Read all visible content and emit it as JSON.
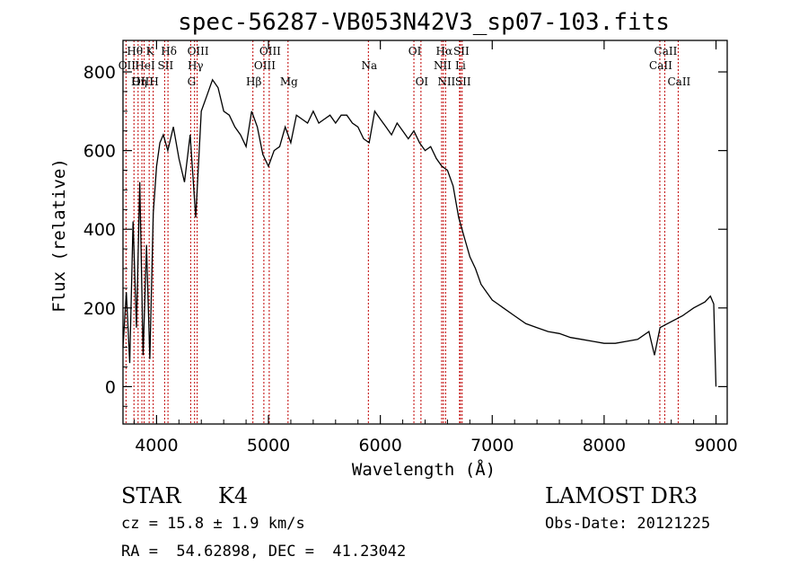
{
  "chart_data": {
    "type": "line",
    "title": "spec-56287-VB053N42V3_sp07-103.fits",
    "xlabel": "Wavelength (Å)",
    "ylabel": "Flux (relative)",
    "xlim": [
      3700,
      9100
    ],
    "ylim": [
      -95,
      880
    ],
    "xticks": [
      4000,
      5000,
      6000,
      7000,
      8000,
      9000
    ],
    "yticks": [
      0,
      200,
      400,
      600,
      800
    ],
    "spectral_lines": [
      {
        "label": "Hθ",
        "wavelength": 3798,
        "row": 0
      },
      {
        "label": "OII",
        "wavelength": 3727,
        "row": 1
      },
      {
        "label": "OIII",
        "wavelength": 3869,
        "row": 2
      },
      {
        "label": "K",
        "wavelength": 3934,
        "row": 0
      },
      {
        "label": "HeI",
        "wavelength": 3889,
        "row": 1
      },
      {
        "label": "Hη",
        "wavelength": 3835,
        "row": 2
      },
      {
        "label": "SII",
        "wavelength": 4072,
        "row": 1
      },
      {
        "label": "H",
        "wavelength": 3970,
        "row": 2
      },
      {
        "label": "Hδ",
        "wavelength": 4102,
        "row": 0
      },
      {
        "label": "OIII",
        "wavelength": 4363,
        "row": 0
      },
      {
        "label": "Hγ",
        "wavelength": 4340,
        "row": 1
      },
      {
        "label": "G",
        "wavelength": 4305,
        "row": 2
      },
      {
        "label": "Hβ",
        "wavelength": 4861,
        "row": 2
      },
      {
        "label": "OIII",
        "wavelength": 5007,
        "row": 0
      },
      {
        "label": "OIII",
        "wavelength": 4959,
        "row": 1
      },
      {
        "label": "Mg",
        "wavelength": 5175,
        "row": 2
      },
      {
        "label": "Na",
        "wavelength": 5893,
        "row": 1
      },
      {
        "label": "OI",
        "wavelength": 6300,
        "row": 0
      },
      {
        "label": "OI",
        "wavelength": 6363,
        "row": 2
      },
      {
        "label": "Hα",
        "wavelength": 6563,
        "row": 0
      },
      {
        "label": "SII",
        "wavelength": 6716,
        "row": 0
      },
      {
        "label": "NII",
        "wavelength": 6548,
        "row": 1
      },
      {
        "label": "Li",
        "wavelength": 6708,
        "row": 1
      },
      {
        "label": "NII",
        "wavelength": 6583,
        "row": 2
      },
      {
        "label": "SII",
        "wavelength": 6731,
        "row": 2
      },
      {
        "label": "CaII",
        "wavelength": 8542,
        "row": 0
      },
      {
        "label": "CaII",
        "wavelength": 8498,
        "row": 1
      },
      {
        "label": "CaII",
        "wavelength": 8662,
        "row": 2
      }
    ],
    "series": [
      {
        "name": "flux",
        "x": [
          3700,
          3730,
          3760,
          3790,
          3820,
          3850,
          3880,
          3910,
          3940,
          3970,
          4000,
          4030,
          4060,
          4100,
          4150,
          4200,
          4250,
          4300,
          4350,
          4400,
          4450,
          4500,
          4550,
          4600,
          4650,
          4700,
          4750,
          4800,
          4850,
          4900,
          4950,
          5000,
          5050,
          5100,
          5150,
          5200,
          5250,
          5300,
          5350,
          5400,
          5450,
          5500,
          5550,
          5600,
          5650,
          5700,
          5750,
          5800,
          5850,
          5900,
          5950,
          6000,
          6050,
          6100,
          6150,
          6200,
          6250,
          6300,
          6350,
          6400,
          6450,
          6500,
          6550,
          6600,
          6650,
          6700,
          6750,
          6800,
          6850,
          6900,
          6950,
          7000,
          7050,
          7100,
          7200,
          7300,
          7400,
          7500,
          7600,
          7700,
          7800,
          7900,
          8000,
          8100,
          8200,
          8300,
          8400,
          8450,
          8500,
          8600,
          8700,
          8800,
          8900,
          8950,
          8980,
          9000
        ],
        "y": [
          100,
          240,
          60,
          420,
          150,
          520,
          80,
          360,
          70,
          440,
          560,
          620,
          640,
          600,
          660,
          580,
          520,
          640,
          430,
          700,
          740,
          780,
          760,
          700,
          690,
          660,
          640,
          610,
          700,
          660,
          590,
          560,
          600,
          610,
          660,
          620,
          690,
          680,
          670,
          700,
          670,
          680,
          690,
          670,
          690,
          690,
          670,
          660,
          630,
          620,
          700,
          680,
          660,
          640,
          670,
          650,
          630,
          650,
          620,
          600,
          610,
          580,
          560,
          550,
          510,
          430,
          380,
          330,
          300,
          260,
          240,
          220,
          210,
          200,
          180,
          160,
          150,
          140,
          135,
          125,
          120,
          115,
          110,
          110,
          115,
          120,
          140,
          80,
          150,
          165,
          180,
          200,
          215,
          230,
          210,
          0
        ]
      }
    ]
  },
  "info": {
    "object_class": "STAR",
    "subclass": "K4",
    "redshift": "cz = 15.8 ± 1.9 km/s",
    "coords": "RA =  54.62898, DEC =  41.23042",
    "survey": "LAMOST DR3",
    "obs_date": "Obs-Date: 20121225"
  },
  "colors": {
    "axis": "#000000",
    "spectrum": "#000000",
    "line_markers": "#c00000"
  }
}
